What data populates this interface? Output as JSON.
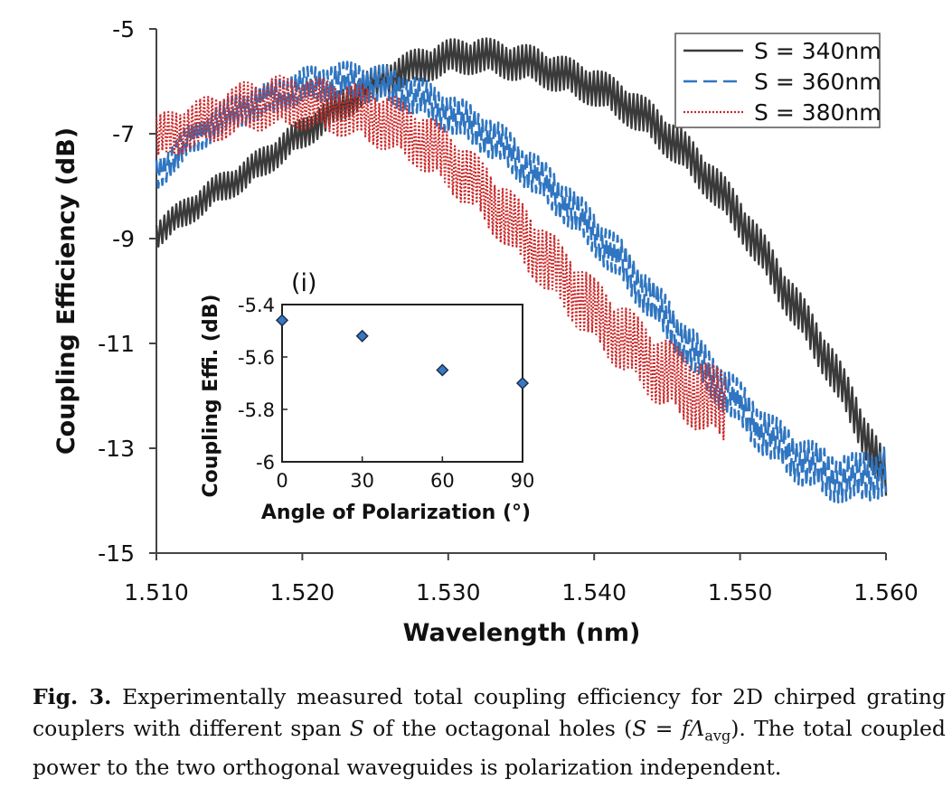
{
  "chart_data": [
    {
      "type": "line",
      "xlabel": "Wavelength (nm)",
      "ylabel": "Coupling Efficiency (dB)",
      "xlim": [
        1.51,
        1.56
      ],
      "ylim": [
        -15,
        -5
      ],
      "xticks": [
        "1.510",
        "1.520",
        "1.530",
        "1.540",
        "1.550",
        "1.560"
      ],
      "yticks": [
        "-5",
        "-7",
        "-9",
        "-11",
        "-13",
        "-15"
      ],
      "grid": false,
      "legend": "top-right",
      "series": [
        {
          "name": "S = 340nm",
          "color": "#3a3a3a",
          "style": "solid",
          "x": [
            1.51,
            1.512,
            1.514,
            1.516,
            1.518,
            1.52,
            1.522,
            1.524,
            1.526,
            1.528,
            1.53,
            1.532,
            1.534,
            1.536,
            1.538,
            1.54,
            1.542,
            1.544,
            1.546,
            1.548,
            1.55,
            1.552,
            1.554,
            1.556,
            1.558,
            1.56
          ],
          "y": [
            -8.9,
            -8.5,
            -8.1,
            -7.8,
            -7.4,
            -7.0,
            -6.6,
            -6.2,
            -5.9,
            -5.7,
            -5.55,
            -5.5,
            -5.6,
            -5.7,
            -5.9,
            -6.1,
            -6.4,
            -6.8,
            -7.3,
            -7.9,
            -8.6,
            -9.5,
            -10.4,
            -11.3,
            -12.4,
            -13.6
          ]
        },
        {
          "name": "S = 360nm",
          "color": "#2f75c1",
          "style": "dashed",
          "x": [
            1.51,
            1.512,
            1.514,
            1.516,
            1.518,
            1.52,
            1.522,
            1.524,
            1.526,
            1.528,
            1.53,
            1.532,
            1.534,
            1.536,
            1.538,
            1.54,
            1.542,
            1.544,
            1.546,
            1.548,
            1.55,
            1.552,
            1.554,
            1.556,
            1.558,
            1.56
          ],
          "y": [
            -7.8,
            -7.2,
            -6.8,
            -6.5,
            -6.3,
            -6.1,
            -6.0,
            -6.0,
            -6.1,
            -6.3,
            -6.6,
            -6.9,
            -7.3,
            -7.8,
            -8.3,
            -8.9,
            -9.5,
            -10.2,
            -10.9,
            -11.6,
            -12.2,
            -12.8,
            -13.2,
            -13.5,
            -13.6,
            -13.4
          ]
        },
        {
          "name": "S = 380nm",
          "color": "#cc2a2a",
          "style": "dotted",
          "x": [
            1.51,
            1.512,
            1.514,
            1.516,
            1.518,
            1.52,
            1.522,
            1.524,
            1.526,
            1.528,
            1.53,
            1.532,
            1.534,
            1.536,
            1.538,
            1.54,
            1.542,
            1.544,
            1.546,
            1.548,
            1.549
          ],
          "y": [
            -7.1,
            -6.9,
            -6.7,
            -6.5,
            -6.4,
            -6.4,
            -6.5,
            -6.6,
            -6.8,
            -7.1,
            -7.5,
            -8.0,
            -8.6,
            -9.2,
            -9.8,
            -10.4,
            -10.9,
            -11.4,
            -11.8,
            -12.1,
            -12.2
          ]
        }
      ]
    },
    {
      "type": "scatter",
      "label": "(i)",
      "xlabel": "Angle of Polarization (°)",
      "ylabel": "Coupling Effi. (dB)",
      "xlim": [
        0,
        90
      ],
      "ylim": [
        -6,
        -5.4
      ],
      "xticks": [
        "0",
        "30",
        "60",
        "90"
      ],
      "yticks": [
        "-5.4",
        "-5.6",
        "-5.8",
        "-6"
      ],
      "grid": false,
      "series": [
        {
          "color": "#3a78c4",
          "x": [
            0,
            30,
            60,
            90
          ],
          "y": [
            -5.46,
            -5.52,
            -5.65,
            -5.7
          ]
        }
      ]
    }
  ],
  "caption": {
    "label": "Fig. 3.",
    "text": "Experimentally measured total coupling efficiency for 2D chirped grating couplers with different span S of the octagonal holes (S = fΛavg). The total coupled power to the two orthogonal waveguides is polarization independent."
  }
}
